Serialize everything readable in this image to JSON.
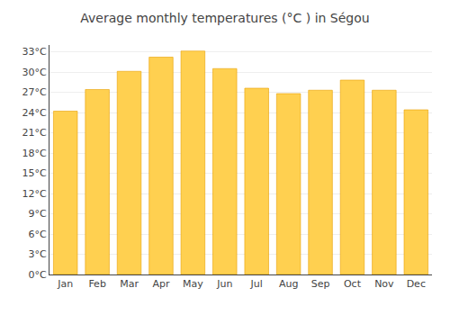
{
  "chart_data": {
    "type": "bar",
    "title": "Average monthly temperatures (°C ) in Ségou",
    "categories": [
      "Jan",
      "Feb",
      "Mar",
      "Apr",
      "May",
      "Jun",
      "Jul",
      "Aug",
      "Sep",
      "Oct",
      "Nov",
      "Dec"
    ],
    "values": [
      24.2,
      27.4,
      30.1,
      32.2,
      33.1,
      30.5,
      27.6,
      26.8,
      27.3,
      28.8,
      27.3,
      24.4
    ],
    "color": "#FFD050",
    "ylim": [
      0,
      34
    ],
    "yticks": [
      {
        "value": 0,
        "label": "0°C"
      },
      {
        "value": 3,
        "label": "3°C"
      },
      {
        "value": 6,
        "label": "6°C"
      },
      {
        "value": 9,
        "label": "9°C"
      },
      {
        "value": 12,
        "label": "12°C"
      },
      {
        "value": 15,
        "label": "15°C"
      },
      {
        "value": 18,
        "label": "18°C"
      },
      {
        "value": 21,
        "label": "21°C"
      },
      {
        "value": 24,
        "label": "24°C"
      },
      {
        "value": 27,
        "label": "27°C"
      },
      {
        "value": 30,
        "label": "30°C"
      },
      {
        "value": 33,
        "label": "33°C"
      }
    ],
    "grid": true
  }
}
